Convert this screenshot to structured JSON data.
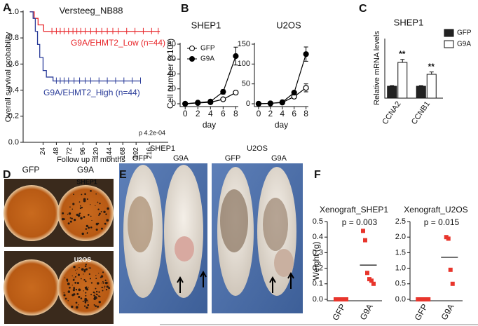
{
  "panel_labels": [
    "A",
    "B",
    "C",
    "D",
    "E",
    "F"
  ],
  "chart_data": [
    {
      "type": "survival",
      "title": "Versteeg_NB88",
      "x_label": "Follow up in months",
      "y_label": "Overall survival probability",
      "annotation": "p 4.2e-04",
      "xlim": [
        -12,
        250
      ],
      "xticks": [
        24,
        48,
        72,
        96,
        120,
        144,
        168,
        192,
        216
      ],
      "ylim": [
        0,
        1.01
      ],
      "yticks": [
        {
          "value": 0,
          "label": "0.0"
        },
        {
          "value": 0.2,
          "label": "0.2"
        },
        {
          "value": 0.4,
          "label": "0.4"
        },
        {
          "value": 0.6,
          "label": "0.6"
        },
        {
          "value": 0.8,
          "label": "0.8"
        },
        {
          "value": 1,
          "label": "1.0"
        }
      ],
      "series": [
        {
          "name": "G9A/EHMT2_Low (n=44)",
          "color": "#e8262a",
          "x": [
            0,
            8,
            8,
            15,
            15,
            25,
            25,
            235
          ],
          "values": [
            1,
            1,
            0.95,
            0.95,
            0.9,
            0.9,
            0.85,
            0.85
          ],
          "censored": [
            40,
            48,
            55,
            62,
            70,
            78,
            85,
            92,
            100,
            110,
            120,
            130,
            140,
            150,
            160,
            175,
            190,
            205,
            220,
            232
          ]
        },
        {
          "name": "G9A/EHMT2_High (n=44)",
          "color": "#2b3d9a",
          "x": [
            0,
            6,
            6,
            10,
            10,
            14,
            14,
            18,
            18,
            24,
            24,
            30,
            30,
            42,
            42,
            200
          ],
          "values": [
            1,
            1,
            0.95,
            0.95,
            0.85,
            0.85,
            0.75,
            0.75,
            0.65,
            0.65,
            0.55,
            0.55,
            0.5,
            0.5,
            0.47,
            0.47
          ],
          "censored": [
            48,
            55,
            62,
            70,
            80,
            90,
            100,
            110,
            125,
            140,
            155,
            170,
            185,
            200
          ]
        }
      ]
    },
    {
      "type": "line",
      "title": "SHEP1",
      "x_label": "day",
      "y_label": "Cell number (x10⁶)",
      "legend": "upper left",
      "xlim": [
        -0.8,
        8.4
      ],
      "xticks": [
        0,
        2,
        4,
        6,
        8
      ],
      "ylim": [
        0,
        80
      ],
      "yticks": [
        0,
        20,
        40,
        60,
        80
      ],
      "x": [
        0,
        2,
        4,
        6,
        8
      ],
      "series": [
        {
          "name": "GFP",
          "color": "#000000",
          "marker": "open",
          "values": [
            0,
            1,
            2,
            6,
            15
          ],
          "errors": [
            0,
            0.3,
            0.5,
            1,
            2
          ]
        },
        {
          "name": "G9A",
          "color": "#000000",
          "marker": "filled",
          "values": [
            0,
            1.5,
            3,
            16,
            64
          ],
          "errors": [
            0,
            0.5,
            0.5,
            3,
            12
          ]
        }
      ]
    },
    {
      "type": "line",
      "title": "U2OS",
      "x_label": "day",
      "xlim": [
        -0.7,
        8.4
      ],
      "xticks": [
        0,
        2,
        4,
        6,
        8
      ],
      "ylim": [
        0,
        150
      ],
      "yticks": [
        0,
        50,
        100,
        150
      ],
      "x": [
        0,
        2,
        4,
        6,
        8
      ],
      "series": [
        {
          "color": "#000000",
          "marker": "open",
          "values": [
            0,
            1,
            3,
            18,
            40
          ],
          "errors": [
            0,
            0.5,
            1,
            2,
            10
          ]
        },
        {
          "color": "#000000",
          "marker": "filled",
          "values": [
            0,
            1,
            4,
            28,
            125
          ],
          "errors": [
            0,
            0.5,
            1,
            3,
            18
          ]
        }
      ]
    },
    {
      "type": "bar",
      "title": "SHEP1",
      "y_label": "Relative mRNA levels",
      "legend": "right",
      "categories": [
        "CCNA2",
        "CCNB1"
      ],
      "ylim": [
        0,
        5
      ],
      "annotations": [
        "**",
        "**"
      ],
      "series": [
        {
          "name": "GFP",
          "color": "#222222",
          "values": [
            1,
            1
          ],
          "errors": [
            0.05,
            0.05
          ]
        },
        {
          "name": "G9A",
          "color": "#ffffff",
          "values": [
            3,
            2
          ],
          "errors": [
            0.25,
            0.2
          ]
        }
      ]
    },
    {
      "type": "strip",
      "title": "Xenograft_SHEP1",
      "annotation": "p = 0.003",
      "y_label": "Weight (g)",
      "color": "#e8352c",
      "categories": [
        "GFP",
        "G9A"
      ],
      "ylim": [
        0,
        0.5
      ],
      "yticks": [
        {
          "value": 0,
          "label": "0.0"
        },
        {
          "value": 0.1,
          "label": "0.1"
        },
        {
          "value": 0.2,
          "label": "0.2"
        },
        {
          "value": 0.3,
          "label": "0.3"
        },
        {
          "value": 0.4,
          "label": "0.4"
        },
        {
          "value": 0.5,
          "label": "0.5"
        }
      ],
      "values": [
        [
          0,
          0,
          0,
          0
        ],
        [
          0.44,
          0.38,
          0.17,
          0.13,
          0.12,
          0.1
        ]
      ],
      "means": [
        null,
        0.22
      ]
    },
    {
      "type": "strip",
      "title": "Xenograft_U2OS",
      "annotation": "p = 0.015",
      "color": "#e8352c",
      "categories": [
        "GFP",
        "G9A"
      ],
      "ylim": [
        0,
        2.5
      ],
      "yticks": [
        {
          "value": 0,
          "label": "0.0"
        },
        {
          "value": 0.5,
          "label": "0.5"
        },
        {
          "value": 1,
          "label": "1.0"
        },
        {
          "value": 1.5,
          "label": "1.5"
        },
        {
          "value": 2,
          "label": "2.0"
        },
        {
          "value": 2.5,
          "label": "2.5"
        }
      ],
      "values": [
        [
          0,
          0,
          0,
          0
        ],
        [
          2.0,
          1.95,
          0.95,
          0.5
        ]
      ],
      "means": [
        null,
        1.35
      ]
    }
  ],
  "photos": {
    "D": {
      "labels": [
        "GFP",
        "G9A"
      ],
      "cells": [
        "SHEP1",
        "U2OS"
      ]
    },
    "E": {
      "panels": [
        {
          "title": "SHEP1",
          "labels": [
            "GFP",
            "G9A"
          ]
        },
        {
          "title": "U2OS",
          "labels": [
            "GFP",
            "G9A"
          ]
        }
      ]
    }
  }
}
